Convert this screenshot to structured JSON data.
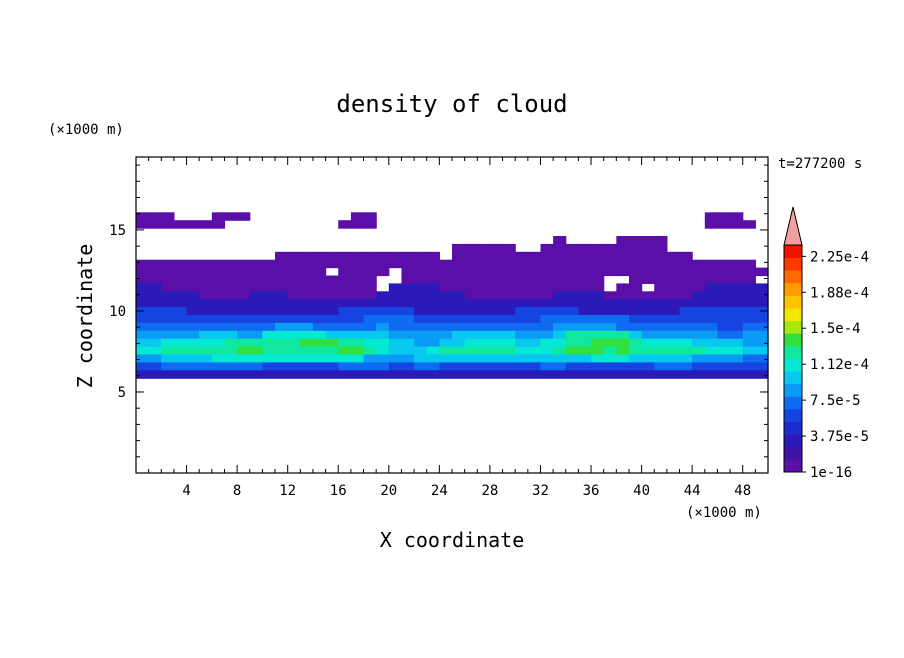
{
  "chart_data": {
    "type": "heatmap",
    "title": "density of cloud",
    "xlabel": "X coordinate",
    "ylabel": "Z coordinate",
    "x_unit": "(×1000 m)",
    "y_unit": "(×1000 m)",
    "time_label": "t=277200 s",
    "xlim": [
      0,
      50
    ],
    "ylim": [
      0,
      19.5
    ],
    "x_ticks": [
      4,
      8,
      12,
      16,
      20,
      24,
      28,
      32,
      36,
      40,
      44,
      48
    ],
    "y_ticks": [
      5,
      10,
      15
    ],
    "colorbar": {
      "labels": [
        "1e-16",
        "3.75e-5",
        "7.5e-5",
        "1.12e-4",
        "1.5e-4",
        "1.88e-4",
        "2.25e-4"
      ],
      "colors": [
        "#5a0fa8",
        "#3e13a8",
        "#2a1ab8",
        "#1c2bcc",
        "#1544e0",
        "#0f6cf0",
        "#0a9cf5",
        "#08c8f0",
        "#06e8d4",
        "#10e8a0",
        "#30e040",
        "#a8e810",
        "#f0e800",
        "#ffc400",
        "#ff9a00",
        "#ff6a00",
        "#ff3a00",
        "#f01400"
      ],
      "extend_color": "#f0a0a0"
    },
    "field": {
      "description_rows_from_top": "row 0 = z 19.5 km, row 39 = z 0 km; columns span x 0..50 km",
      "rows": [
        "                                                  ",
        "                                                  ",
        "                                                  ",
        "                                                  ",
        "                                                  ",
        "                                                  ",
        "                                                  ",
        "111   111        11                          111  ",
        "1111111         111                          1111 ",
        "                                                  ",
        "                                 1    1111        ",
        "                         11111  1111111111        ",
        "           1111111111111 1111111111111111111      ",
        "1111111111111111111111111111111111111111111111111 ",
        "111111111111111 1111 11111111111111111111111111111",
        "1111111111111111111  1111111111111111  1111111111 ",
        "2211111111111111111 22221111111111111 11 111122222",
        "22222111122211111112222222111111122221111111222222",
        "22222222222222222222222222222222222222222222222222",
        "33332222222222223333332222222233333222222223333333",
        "33333333333333333344443333333333444444433333333333",
        "44444444444555444445444444444444455555444444443344",
        "55555666557777766666555556666655568888865555554455",
        "66777778888889998877665566777766778899987777666655",
        "77888888998888889987666788888877789998988888877766",
        "55666677777777777755556666666666666677766666555544",
        "33444444443333334444334433333333443333333444333333",
        "22222222222222222222222222222222222222222222222222",
        "                                                  ",
        "                                                  ",
        "                                                  ",
        "                                                  ",
        "                                                  ",
        "                                                  ",
        "                                                  ",
        "                                                  ",
        "                                                  ",
        "                                                  ",
        "                                                  ",
        "                                                  "
      ]
    }
  }
}
